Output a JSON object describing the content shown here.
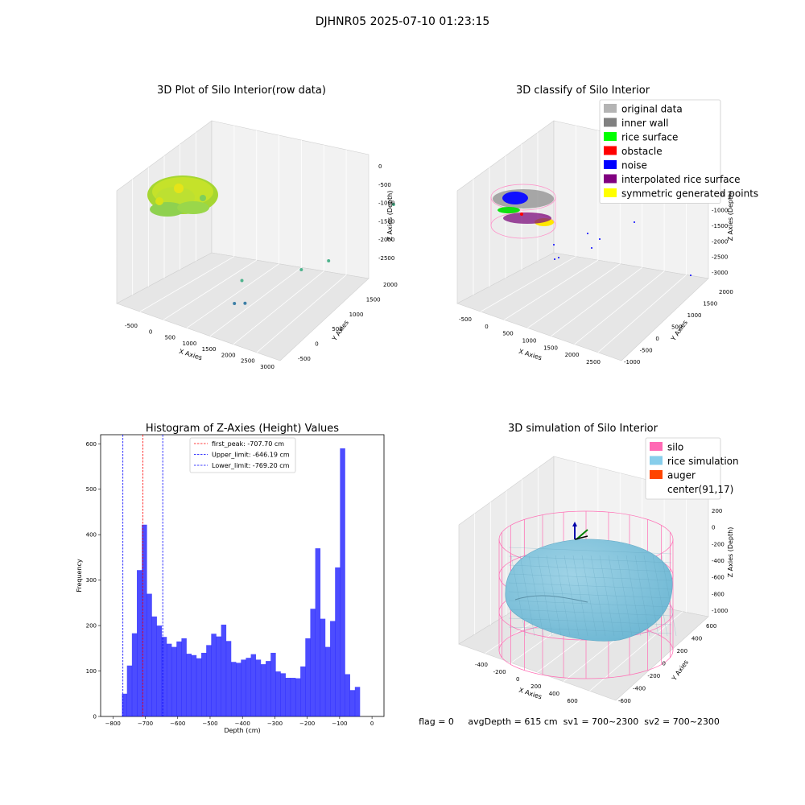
{
  "figure": {
    "suptitle": "DJHNR05 2025-07-10 01:23:15",
    "footer": "flag = 0     avgDepth = 615 cm  sv1 = 700~2300  sv2 = 700~2300"
  },
  "chart_data": [
    {
      "type": "scatter3d",
      "title": "3D Plot of Silo Interior(row data)",
      "xlabel": "X Axies",
      "ylabel": "Y Axies",
      "zlabel": "Z Axies (Depth)",
      "xticks": [
        "-500",
        "0",
        "500",
        "1000",
        "1500",
        "2000",
        "2500",
        "3000"
      ],
      "yticks": [
        "-500",
        "0",
        "500",
        "1000",
        "1500",
        "2000"
      ],
      "zticks": [
        "0",
        "-500",
        "-1000",
        "-1500",
        "-2000",
        "-2500"
      ],
      "outlier_points": [
        {
          "x": 1700,
          "y": 1600,
          "z": -1300
        },
        {
          "x": 500,
          "y": 0,
          "z": -2000
        },
        {
          "x": 1400,
          "y": 300,
          "z": -1700
        },
        {
          "x": 1600,
          "y": 600,
          "z": -1700
        },
        {
          "x": 600,
          "y": -200,
          "z": -2300
        },
        {
          "x": 700,
          "y": -100,
          "z": -2350
        },
        {
          "x": 2800,
          "y": 1900,
          "z": -2700
        }
      ]
    },
    {
      "type": "scatter3d",
      "title": "3D classify of Silo Interior",
      "xlabel": "X Axies",
      "ylabel": "Y Axies",
      "zlabel": "Z Axies (Depth)",
      "xticks": [
        "-500",
        "0",
        "500",
        "1000",
        "1500",
        "2000",
        "2500"
      ],
      "yticks": [
        "-1000",
        "-500",
        "0",
        "500",
        "1000",
        "1500",
        "2000"
      ],
      "zticks": [
        "0",
        "-500",
        "-1000",
        "-1500",
        "-2000",
        "-2500",
        "-3000"
      ],
      "legend_position": "top-right",
      "legend": [
        {
          "label": "original data",
          "color": "#b4b4b4"
        },
        {
          "label": "inner wall",
          "color": "#808080"
        },
        {
          "label": "rice surface",
          "color": "#00ff00"
        },
        {
          "label": "obstacle",
          "color": "#ff0000"
        },
        {
          "label": "noise",
          "color": "#0000ff"
        },
        {
          "label": "interpolated rice surface",
          "color": "#800080"
        },
        {
          "label": "symmetric generated points",
          "color": "#ffff00"
        }
      ]
    },
    {
      "type": "bar",
      "title": "Histogram of Z-Axies (Height) Values",
      "xlabel": "Depth (cm)",
      "ylabel": "Frequency",
      "xlim": [
        -800,
        0
      ],
      "ylim": [
        0,
        620
      ],
      "xticks": [
        -800,
        -700,
        -600,
        -500,
        -400,
        -300,
        -200,
        -100,
        0
      ],
      "yticks": [
        0,
        100,
        200,
        300,
        400,
        500,
        600
      ],
      "bar_color": "#0000ff",
      "bin_start": -772,
      "bin_width": 15.3,
      "values": [
        50,
        112,
        183,
        322,
        422,
        270,
        220,
        200,
        175,
        160,
        153,
        165,
        172,
        138,
        135,
        128,
        140,
        157,
        182,
        176,
        202,
        166,
        120,
        118,
        125,
        129,
        137,
        125,
        115,
        122,
        140,
        99,
        95,
        85,
        85,
        84,
        110,
        172,
        237,
        370,
        215,
        153,
        210,
        328,
        590,
        93,
        58,
        65
      ],
      "vlines": [
        {
          "label": "first_peak: -707.70 cm",
          "x": -707.7,
          "color": "#ff0000"
        },
        {
          "label": "Upper_limit: -646.19 cm",
          "x": -646.19,
          "color": "#0000ff"
        },
        {
          "label": "Lower_limit: -769.20 cm",
          "x": -769.2,
          "color": "#0000ff"
        }
      ]
    },
    {
      "type": "surface3d",
      "title": "3D simulation of Silo Interior",
      "xlabel": "X Axies",
      "ylabel": "Y Axies",
      "zlabel": "Z Axies (Depth)",
      "xticks": [
        "-400",
        "-200",
        "0",
        "200",
        "400",
        "600"
      ],
      "yticks": [
        "-600",
        "-400",
        "-200",
        "0",
        "200",
        "400",
        "600"
      ],
      "zticks": [
        "200",
        "0",
        "-200",
        "-400",
        "-600",
        "-800",
        "-1000"
      ],
      "legend_position": "top-right",
      "legend": [
        {
          "label": "silo",
          "color": "#ff69b4"
        },
        {
          "label": "rice simulation",
          "color": "#87ceeb"
        },
        {
          "label": "auger",
          "color": "#ff4500"
        },
        {
          "label": "center(91,17)",
          "color": ""
        }
      ]
    }
  ]
}
